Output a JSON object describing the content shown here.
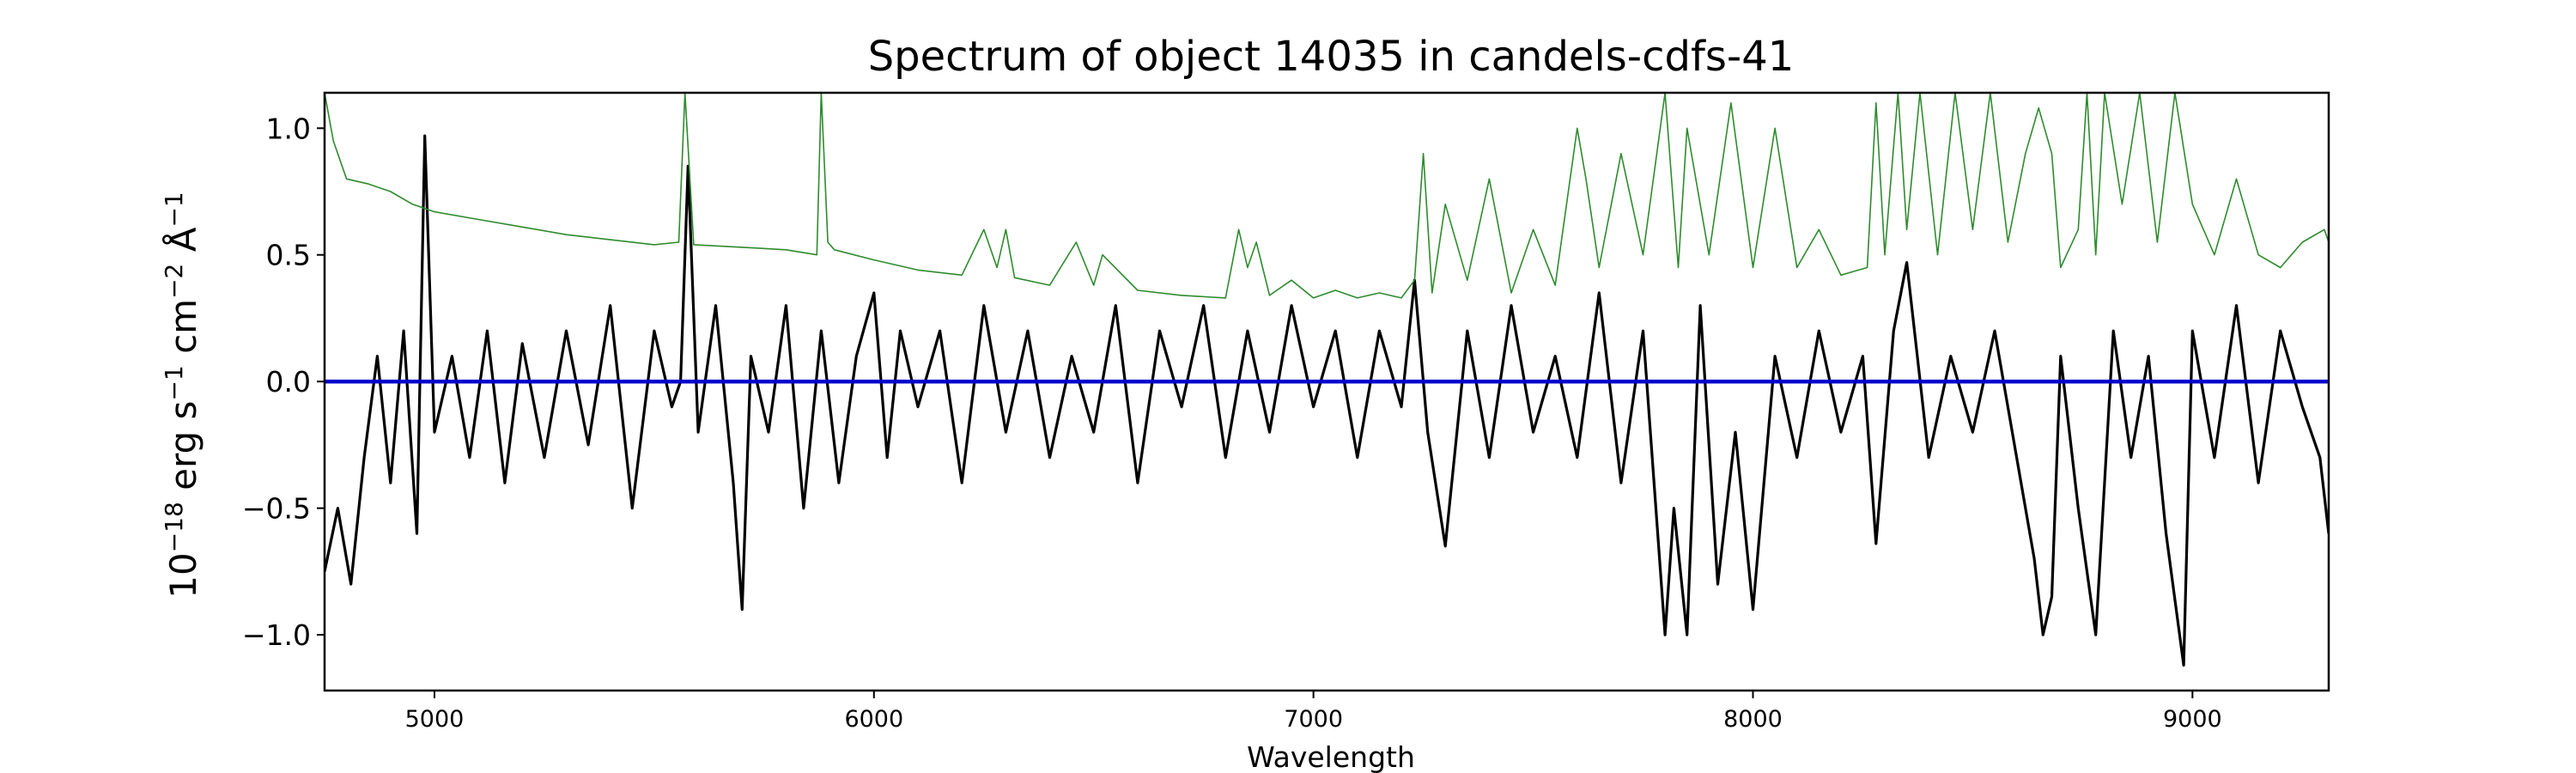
{
  "chart_data": {
    "type": "line",
    "title": "Spectrum of object 14035 in candels-cdfs-41",
    "xlabel": "Wavelength",
    "ylabel": {
      "pre": "10",
      "e1": "−18",
      "mid1": " erg s",
      "e2": "−1",
      "mid2": " cm",
      "e3": "−2",
      "mid3": " Å",
      "e4": "−1"
    },
    "xlim": [
      4750,
      9310
    ],
    "ylim": [
      -1.22,
      1.14
    ],
    "xticks": [
      5000,
      6000,
      7000,
      8000,
      9000
    ],
    "xtick_labels": [
      "5000",
      "6000",
      "7000",
      "8000",
      "9000"
    ],
    "yticks": [
      -1.0,
      -0.5,
      0.0,
      0.5,
      1.0
    ],
    "ytick_labels": [
      "−1.0",
      "−0.5",
      "0.0",
      "0.5",
      "1.0"
    ],
    "grid": false,
    "legend": "none",
    "series": [
      {
        "color": "#000000",
        "note": "flux",
        "x": [
          4750,
          4780,
          4810,
          4840,
          4870,
          4900,
          4930,
          4960,
          4978,
          5000,
          5040,
          5080,
          5120,
          5160,
          5200,
          5250,
          5300,
          5350,
          5400,
          5450,
          5500,
          5540,
          5560,
          5577,
          5600,
          5640,
          5680,
          5700,
          5720,
          5760,
          5800,
          5840,
          5880,
          5920,
          5960,
          6000,
          6030,
          6060,
          6100,
          6150,
          6200,
          6250,
          6300,
          6350,
          6400,
          6450,
          6500,
          6550,
          6600,
          6650,
          6700,
          6750,
          6800,
          6850,
          6900,
          6950,
          7000,
          7050,
          7100,
          7150,
          7200,
          7230,
          7260,
          7300,
          7350,
          7400,
          7450,
          7500,
          7550,
          7600,
          7650,
          7700,
          7750,
          7800,
          7820,
          7850,
          7880,
          7920,
          7960,
          8000,
          8050,
          8100,
          8150,
          8200,
          8250,
          8280,
          8320,
          8350,
          8400,
          8450,
          8500,
          8550,
          8600,
          8640,
          8660,
          8680,
          8700,
          8740,
          8780,
          8820,
          8860,
          8900,
          8940,
          8980,
          9000,
          9050,
          9100,
          9150,
          9200,
          9250,
          9290,
          9310
        ],
        "y": [
          -0.75,
          -0.5,
          -0.8,
          -0.3,
          0.1,
          -0.4,
          0.2,
          -0.6,
          0.97,
          -0.2,
          0.1,
          -0.3,
          0.2,
          -0.4,
          0.15,
          -0.3,
          0.2,
          -0.25,
          0.3,
          -0.5,
          0.2,
          -0.1,
          0.0,
          0.85,
          -0.2,
          0.3,
          -0.4,
          -0.9,
          0.1,
          -0.2,
          0.3,
          -0.5,
          0.2,
          -0.4,
          0.1,
          0.35,
          -0.3,
          0.2,
          -0.1,
          0.2,
          -0.4,
          0.3,
          -0.2,
          0.2,
          -0.3,
          0.1,
          -0.2,
          0.3,
          -0.4,
          0.2,
          -0.1,
          0.3,
          -0.3,
          0.2,
          -0.2,
          0.3,
          -0.1,
          0.2,
          -0.3,
          0.2,
          -0.1,
          0.4,
          -0.2,
          -0.65,
          0.2,
          -0.3,
          0.3,
          -0.2,
          0.1,
          -0.3,
          0.35,
          -0.4,
          0.2,
          -1.0,
          -0.5,
          -1.0,
          0.3,
          -0.8,
          -0.2,
          -0.9,
          0.1,
          -0.3,
          0.2,
          -0.2,
          0.1,
          -0.64,
          0.2,
          0.47,
          -0.3,
          0.1,
          -0.2,
          0.2,
          -0.3,
          -0.7,
          -1.0,
          -0.85,
          0.1,
          -0.5,
          -1.0,
          0.2,
          -0.3,
          0.1,
          -0.6,
          -1.12,
          0.2,
          -0.3,
          0.3,
          -0.4,
          0.2,
          -0.1,
          -0.3,
          -0.6
        ]
      },
      {
        "color": "#2e8b2e",
        "note": "error",
        "x": [
          4750,
          4770,
          4800,
          4850,
          4900,
          4950,
          5000,
          5100,
          5200,
          5300,
          5400,
          5500,
          5556,
          5570,
          5590,
          5700,
          5800,
          5870,
          5880,
          5895,
          5910,
          6000,
          6100,
          6200,
          6250,
          6280,
          6300,
          6320,
          6400,
          6460,
          6500,
          6520,
          6600,
          6700,
          6800,
          6830,
          6850,
          6870,
          6900,
          6950,
          7000,
          7050,
          7100,
          7150,
          7200,
          7230,
          7250,
          7270,
          7300,
          7350,
          7400,
          7450,
          7500,
          7550,
          7600,
          7620,
          7650,
          7700,
          7750,
          7800,
          7830,
          7850,
          7900,
          7950,
          8000,
          8050,
          8100,
          8150,
          8200,
          8260,
          8280,
          8300,
          8330,
          8350,
          8380,
          8420,
          8460,
          8500,
          8540,
          8580,
          8620,
          8650,
          8680,
          8700,
          8740,
          8760,
          8780,
          8800,
          8840,
          8880,
          8920,
          8960,
          9000,
          9050,
          9100,
          9150,
          9200,
          9250,
          9300,
          9310
        ],
        "y": [
          1.14,
          0.95,
          0.8,
          0.78,
          0.75,
          0.7,
          0.67,
          0.64,
          0.61,
          0.58,
          0.56,
          0.54,
          0.55,
          1.14,
          0.54,
          0.53,
          0.52,
          0.5,
          1.14,
          0.55,
          0.52,
          0.48,
          0.44,
          0.42,
          0.6,
          0.45,
          0.6,
          0.41,
          0.38,
          0.55,
          0.38,
          0.5,
          0.36,
          0.34,
          0.33,
          0.6,
          0.45,
          0.55,
          0.34,
          0.4,
          0.33,
          0.36,
          0.33,
          0.35,
          0.33,
          0.4,
          0.9,
          0.35,
          0.7,
          0.4,
          0.8,
          0.35,
          0.6,
          0.38,
          1.0,
          0.8,
          0.45,
          0.9,
          0.5,
          1.14,
          0.45,
          1.0,
          0.5,
          1.1,
          0.45,
          1.0,
          0.45,
          0.6,
          0.42,
          0.45,
          1.1,
          0.5,
          1.14,
          0.6,
          1.14,
          0.5,
          1.14,
          0.6,
          1.14,
          0.55,
          0.9,
          1.08,
          0.9,
          0.45,
          0.6,
          1.14,
          0.5,
          1.14,
          0.7,
          1.14,
          0.55,
          1.14,
          0.7,
          0.5,
          0.8,
          0.5,
          0.45,
          0.55,
          0.6,
          0.55
        ]
      },
      {
        "color": "#0000cc",
        "note": "zero",
        "x": [
          4750,
          9310
        ],
        "y": [
          0.0,
          0.0
        ]
      }
    ]
  }
}
